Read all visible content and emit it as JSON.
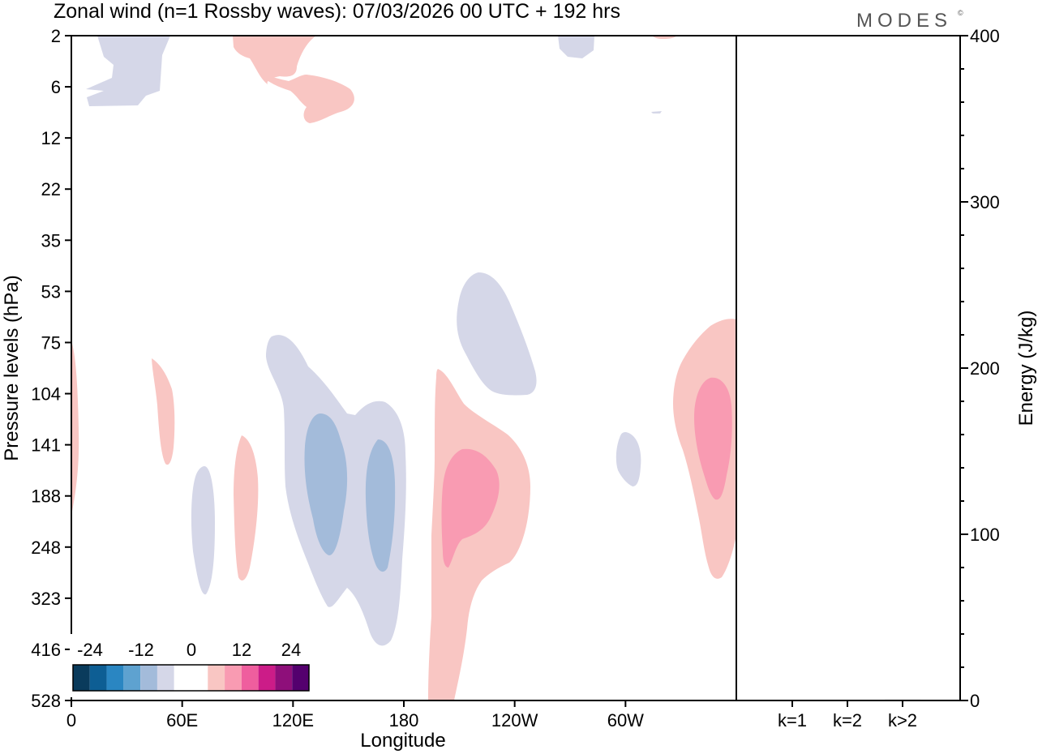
{
  "chart_data": {
    "type": "contour",
    "title": "Zonal wind (n=1 Rossby waves):  07/03/2026  00 UTC  + 192 hrs",
    "brand": "MODES",
    "brand_mark": "©",
    "left_panel": {
      "xlabel": "Longitude",
      "ylabel": "Pressure levels (hPa)",
      "x_ticks": [
        "0",
        "60E",
        "120E",
        "180",
        "120W",
        "60W"
      ],
      "x_tick_lon": [
        0,
        60,
        120,
        180,
        240,
        300
      ],
      "x_range_lon": [
        0,
        360
      ],
      "y_ticks": [
        "2",
        "6",
        "12",
        "22",
        "35",
        "53",
        "75",
        "104",
        "141",
        "188",
        "248",
        "323",
        "416",
        "528"
      ],
      "y_ticks_inverted": true
    },
    "right_panel": {
      "type": "bar",
      "ylabel": "Energy (J/kg)",
      "categories": [
        "k=1",
        "k=2",
        "k>2"
      ],
      "values": [
        0,
        0,
        0.5
      ],
      "ylim": [
        0,
        400
      ],
      "y_ticks": [
        0,
        100,
        200,
        300,
        400
      ]
    },
    "colorbar": {
      "labels": [
        "-24",
        "-12",
        "0",
        "12",
        "24"
      ],
      "colors": [
        "#0a3b5c",
        "#0d5e94",
        "#2a86c2",
        "#5ea2d0",
        "#a3bbda",
        "#d5d7e8",
        "#ffffff",
        "#ffffff",
        "#f9c6c3",
        "#f99bb2",
        "#ef5e9e",
        "#cc1c88",
        "#8e0f7a",
        "#54006e"
      ]
    },
    "contour_fill_colors": {
      "neg_light": "#d5d7e8",
      "neg_mid": "#a3bbda",
      "pos_light": "#f9c6c3",
      "pos_mid": "#f99bb2"
    }
  }
}
